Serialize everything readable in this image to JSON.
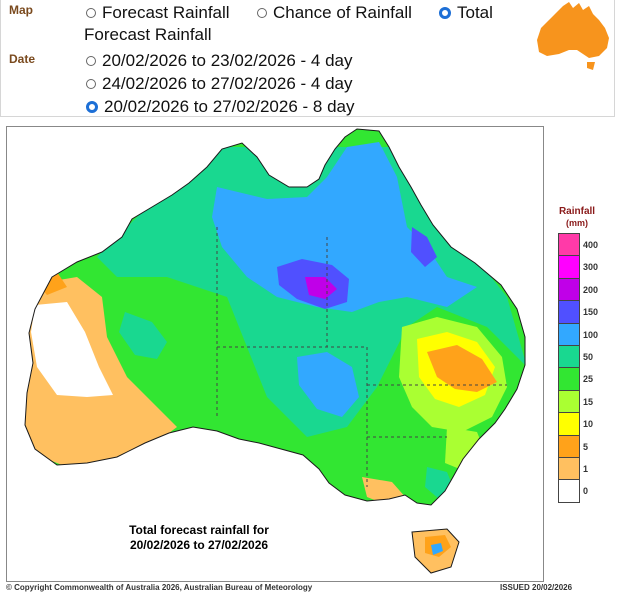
{
  "controls": {
    "map_label": "Map",
    "date_label": "Date",
    "map_options": [
      {
        "label": "Forecast Rainfall",
        "selected": false
      },
      {
        "label": "Chance of Rainfall",
        "selected": false
      },
      {
        "label": "Total",
        "selected": true
      }
    ],
    "map_option_wrap": "Forecast Rainfall",
    "date_options": [
      {
        "label": "20/02/2026 to 23/02/2026 - 4 day",
        "selected": false
      },
      {
        "label": "24/02/2026 to 27/02/2026 - 4 day",
        "selected": false
      },
      {
        "label": "20/02/2026 to 27/02/2026 - 8 day",
        "selected": true
      }
    ]
  },
  "map": {
    "caption_line1": "Total forecast rainfall for",
    "caption_line2": "20/02/2026 to 27/02/2026",
    "logo_icon": "australia-map-icon",
    "logo_color": "#f7941d"
  },
  "legend": {
    "title": "Rainfall",
    "units": "(mm)",
    "levels": [
      {
        "label": "400",
        "color": "#ff3aa8"
      },
      {
        "label": "300",
        "color": "#ff00ff"
      },
      {
        "label": "200",
        "color": "#c000e8"
      },
      {
        "label": "150",
        "color": "#5050ff"
      },
      {
        "label": "100",
        "color": "#32a8ff"
      },
      {
        "label": "50",
        "color": "#19d890"
      },
      {
        "label": "25",
        "color": "#32e632"
      },
      {
        "label": "15",
        "color": "#aaff32"
      },
      {
        "label": "10",
        "color": "#ffff00"
      },
      {
        "label": "5",
        "color": "#ffa21a"
      },
      {
        "label": "1",
        "color": "#ffc060"
      },
      {
        "label": "0",
        "color": "#ffffff"
      }
    ]
  },
  "footer": {
    "copyright": "© Copyright Commonwealth of Australia 2026, Australian Bureau of Meteorology",
    "issued": "ISSUED 20/02/2026"
  }
}
